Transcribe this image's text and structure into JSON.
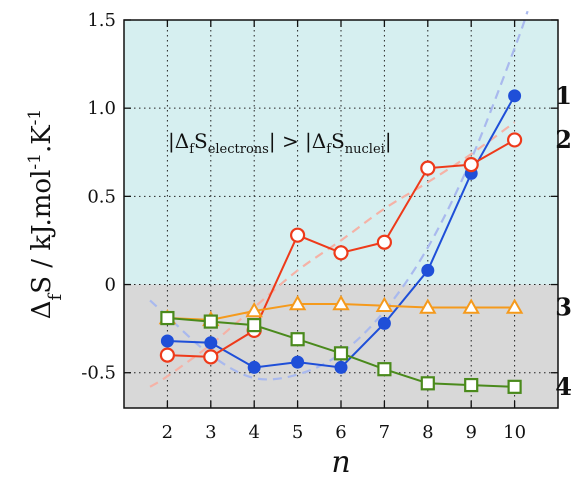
{
  "chart_data": {
    "type": "line",
    "xlabel": "n",
    "ylabel": "ΔfS / kJ.mol-1.K-1",
    "x": [
      2,
      3,
      4,
      5,
      6,
      7,
      8,
      9,
      10
    ],
    "xlim": [
      1,
      11
    ],
    "ylim": [
      -0.7,
      1.5
    ],
    "xticks": [
      "2",
      "3",
      "4",
      "5",
      "6",
      "7",
      "8",
      "9",
      "10"
    ],
    "yticks": [
      "-0.5",
      "0",
      "0.5",
      "1.0",
      "1.5"
    ],
    "grid": true,
    "region_colors": {
      "upper": "#d6eff0",
      "lower": "#d8d8d8"
    },
    "annotation": "|ΔfSelectrons| > |ΔfSnuclei|",
    "series": [
      {
        "label": "1",
        "marker": "filled-circle",
        "color": "#1f4fd8",
        "values": [
          -0.32,
          -0.33,
          -0.47,
          -0.44,
          -0.47,
          -0.22,
          0.08,
          0.63,
          1.07
        ]
      },
      {
        "label": "2",
        "marker": "open-circle",
        "color": "#ee3a1a",
        "values": [
          -0.4,
          -0.41,
          -0.26,
          0.28,
          0.18,
          0.24,
          0.66,
          0.68,
          0.82
        ]
      },
      {
        "label": "3",
        "marker": "open-triangle",
        "color": "#f59a1c",
        "values": [
          -0.19,
          -0.2,
          -0.15,
          -0.11,
          -0.11,
          -0.12,
          -0.13,
          -0.13,
          -0.13
        ]
      },
      {
        "label": "4",
        "marker": "open-square",
        "color": "#4a8a1c",
        "values": [
          -0.19,
          -0.21,
          -0.23,
          -0.31,
          -0.39,
          -0.48,
          -0.56,
          -0.57,
          -0.58
        ]
      }
    ],
    "fits": [
      {
        "color": "#a9b9ee",
        "x": [
          1.6,
          2,
          3,
          4,
          5,
          6,
          7,
          8,
          9,
          10,
          10.3
        ],
        "values": [
          -0.09,
          -0.18,
          -0.4,
          -0.53,
          -0.51,
          -0.39,
          -0.15,
          0.21,
          0.71,
          1.34,
          1.55
        ]
      },
      {
        "color": "#f5b2a6",
        "x": [
          1.6,
          2,
          3,
          4,
          5,
          6,
          7,
          8,
          9,
          10
        ],
        "values": [
          -0.58,
          -0.52,
          -0.34,
          -0.13,
          0.08,
          0.25,
          0.43,
          0.58,
          0.74,
          0.92
        ]
      }
    ]
  }
}
